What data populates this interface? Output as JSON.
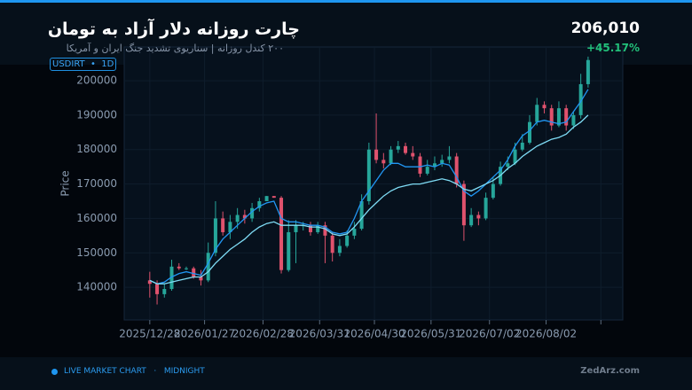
{
  "header": {
    "title": "چارت روزانه دلار آزاد به تومان",
    "subtitle": "۲۰۰ کندل روزانه | سناریوی تشدید جنگ ایران و آمریکا",
    "badge": "USDIRT  •  1D",
    "price": "206,010",
    "change": "+45.17%"
  },
  "footer": {
    "status": "LIVE MARKET CHART   ·   MIDNIGHT",
    "brand": "ZedArz.com"
  },
  "chart_data": {
    "type": "candlestick",
    "ylabel": "Price",
    "up_color": "#26a69a",
    "down_color": "#e0526d",
    "grid": true,
    "xlim": [
      "2025/12/14",
      "2026/09/13"
    ],
    "xticks": [
      "2025/12/28",
      "2026/01/27",
      "2026/02/28",
      "2026/03/31",
      "2026/04/30",
      "2026/05/31",
      "2026/07/02",
      "2026/08/02",
      {
        "value": "2026/09/01",
        "label": null
      }
    ],
    "ylim": [
      130500,
      209800
    ],
    "yticks": [
      140000,
      150000,
      160000,
      170000,
      180000,
      190000,
      200000
    ],
    "x": [
      "2025/12/28",
      "2026/01/01",
      "2026/01/05",
      "2026/01/09",
      "2026/01/13",
      "2026/01/17",
      "2026/01/21",
      "2026/01/25",
      "2026/01/29",
      "2026/02/02",
      "2026/02/06",
      "2026/02/10",
      "2026/02/14",
      "2026/02/18",
      "2026/02/22",
      "2026/02/26",
      "2026/03/02",
      "2026/03/06",
      "2026/03/10",
      "2026/03/14",
      "2026/03/18",
      "2026/03/22",
      "2026/03/26",
      "2026/03/30",
      "2026/04/03",
      "2026/04/07",
      "2026/04/11",
      "2026/04/15",
      "2026/04/19",
      "2026/04/23",
      "2026/04/27",
      "2026/05/01",
      "2026/05/05",
      "2026/05/09",
      "2026/05/13",
      "2026/05/17",
      "2026/05/21",
      "2026/05/25",
      "2026/05/29",
      "2026/06/02",
      "2026/06/06",
      "2026/06/10",
      "2026/06/14",
      "2026/06/18",
      "2026/06/22",
      "2026/06/26",
      "2026/06/30",
      "2026/07/04",
      "2026/07/08",
      "2026/07/12",
      "2026/07/16",
      "2026/07/20",
      "2026/07/24",
      "2026/07/28",
      "2026/08/01",
      "2026/08/05",
      "2026/08/09",
      "2026/08/13",
      "2026/08/17",
      "2026/08/21",
      "2026/08/25"
    ],
    "open": [
      142000,
      141000,
      138000,
      139500,
      146000,
      145500,
      145500,
      143000,
      142000,
      150000,
      160000,
      156000,
      159000,
      161000,
      160000,
      163000,
      165000,
      166500,
      166000,
      145000,
      156000,
      158000,
      158000,
      156000,
      158000,
      155000,
      150000,
      152000,
      155000,
      157000,
      165000,
      180000,
      177000,
      176000,
      180000,
      181000,
      179000,
      178000,
      173000,
      175000,
      176000,
      177000,
      178000,
      170000,
      158000,
      161000,
      160000,
      166000,
      170000,
      175000,
      176000,
      180000,
      182000,
      188000,
      193000,
      192000,
      187000,
      192000,
      187000,
      190000,
      199000
    ],
    "high": [
      144500,
      142000,
      141000,
      148000,
      147000,
      146000,
      146000,
      145000,
      153000,
      165000,
      162000,
      161000,
      163000,
      162500,
      164500,
      166000,
      166500,
      166500,
      166500,
      159500,
      159500,
      159000,
      159000,
      159000,
      159000,
      156000,
      154000,
      156500,
      159000,
      167000,
      182000,
      190500,
      179000,
      181000,
      182500,
      182000,
      181000,
      179000,
      177000,
      178000,
      178500,
      181000,
      179000,
      171000,
      163000,
      162000,
      167500,
      172000,
      176500,
      178000,
      182000,
      184500,
      190000,
      195000,
      194000,
      193000,
      194000,
      193000,
      191000,
      202000,
      207000
    ],
    "low": [
      137000,
      135000,
      137000,
      139000,
      145000,
      145000,
      142500,
      140500,
      141500,
      149000,
      155000,
      154000,
      157000,
      158500,
      159000,
      162000,
      165000,
      166000,
      144000,
      144500,
      147000,
      156500,
      155000,
      155500,
      147000,
      147500,
      149000,
      151500,
      154000,
      156500,
      164000,
      176000,
      174500,
      175500,
      179000,
      178500,
      177000,
      172000,
      172500,
      174000,
      175000,
      176000,
      169000,
      153500,
      157500,
      158000,
      159500,
      165500,
      169500,
      174000,
      175500,
      179500,
      181500,
      187000,
      190500,
      185500,
      186500,
      185500,
      186000,
      189000,
      198000
    ],
    "close": [
      141000,
      138000,
      139500,
      146000,
      145500,
      145500,
      143000,
      142000,
      150000,
      160000,
      156000,
      159000,
      161000,
      160000,
      163000,
      165000,
      166500,
      166000,
      145000,
      156000,
      158000,
      158000,
      156000,
      158000,
      155000,
      150000,
      152000,
      155000,
      157000,
      165000,
      180000,
      177000,
      176000,
      180000,
      181000,
      179000,
      178000,
      173000,
      175000,
      176000,
      177000,
      178000,
      170000,
      158000,
      161000,
      160000,
      166000,
      170000,
      175000,
      176000,
      180000,
      182000,
      188000,
      193000,
      192000,
      187000,
      192000,
      187000,
      190000,
      199000,
      206010
    ],
    "ma_series": [
      {
        "color": "#2196f3",
        "values": [
          142000,
          141000,
          141500,
          143000,
          144000,
          144500,
          144000,
          143500,
          147000,
          151000,
          154000,
          156000,
          158000,
          160000,
          162000,
          163500,
          164500,
          165000,
          160000,
          159000,
          159000,
          158500,
          158000,
          158000,
          157500,
          156000,
          155500,
          156000,
          160000,
          165000,
          168000,
          171000,
          174000,
          176000,
          176000,
          175000,
          175000,
          175000,
          175500,
          175000,
          176000,
          175500,
          172000,
          168000,
          166500,
          168000,
          170000,
          172000,
          174000,
          177000,
          181000,
          184000,
          185500,
          188000,
          188500,
          188000,
          187500,
          188000,
          191000,
          194000,
          197500
        ]
      },
      {
        "color": "#7fdcf5",
        "values": [
          142000,
          141000,
          141000,
          141500,
          142000,
          142500,
          143000,
          143000,
          144500,
          147000,
          149000,
          151000,
          152500,
          154000,
          156000,
          157500,
          158500,
          159000,
          158000,
          158000,
          158000,
          158000,
          157500,
          157500,
          157000,
          155500,
          155000,
          155500,
          157500,
          160000,
          162500,
          164500,
          166500,
          168000,
          169000,
          169500,
          170000,
          170000,
          170500,
          171000,
          171500,
          171000,
          170000,
          168500,
          168000,
          169000,
          170000,
          171000,
          172500,
          174500,
          176000,
          178000,
          179500,
          181000,
          182000,
          183000,
          183500,
          184500,
          186500,
          188000,
          190000
        ]
      }
    ]
  }
}
